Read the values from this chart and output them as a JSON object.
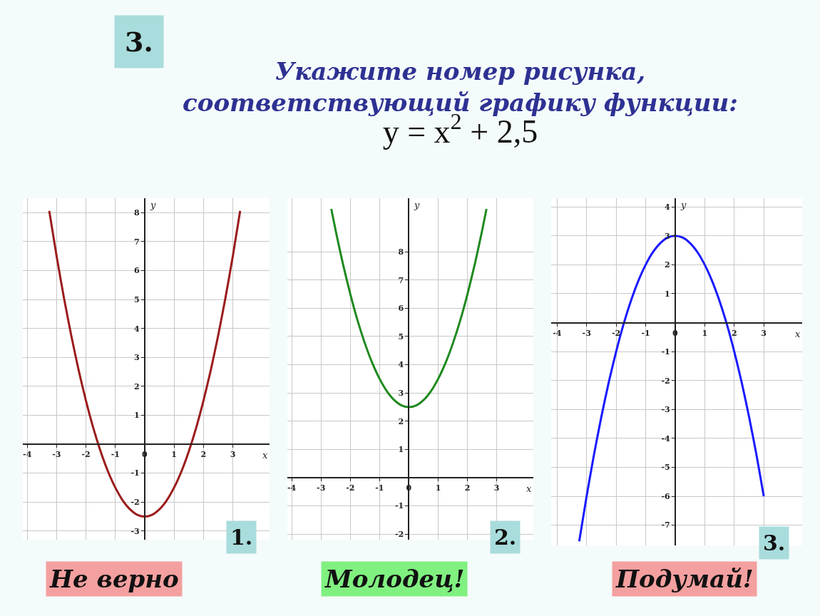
{
  "chart_data": [
    {
      "type": "line",
      "title": "Укажите номер рисунка,\nсоответствующий графику функции:\ny = x$^{2}$ + 2,5",
      "xlabel": "x",
      "ylabel": "y",
      "annotations": [
        "3.",
        "1.",
        "Не верно"
      ],
      "series": [
        {
          "color": "#9b1c1c",
          "x": [
            -3.25,
            -3,
            -2.75,
            -2.5,
            -2.25,
            -2,
            -1.75,
            -1.5,
            -1.25,
            -1,
            -0.75,
            -0.5,
            -0.25,
            0,
            0.25,
            0.5,
            0.75,
            1,
            1.25,
            1.5,
            1.75,
            2,
            2.25,
            2.5,
            2.75,
            3,
            3.25
          ],
          "values": [
            8.06,
            6.5,
            5.06,
            3.75,
            2.56,
            1.5,
            0.56,
            -0.25,
            -0.94,
            -1.5,
            -1.94,
            -2.25,
            -2.44,
            -2.5,
            -2.44,
            -2.25,
            -1.94,
            -1.5,
            -0.94,
            -0.25,
            0.56,
            1.5,
            2.56,
            3.75,
            5.06,
            6.5,
            8.06
          ]
        }
      ],
      "xlim": [
        -4.15,
        4.25
      ],
      "ylim": [
        -3.3,
        8.5
      ],
      "xticks": [
        -4,
        -3,
        -2,
        -1,
        0,
        1,
        2,
        3
      ],
      "yticks": [
        -3,
        -2,
        -1,
        1,
        2,
        3,
        4,
        5,
        6,
        7,
        8
      ],
      "grid": true
    },
    {
      "type": "line",
      "xlabel": "x",
      "ylabel": "y",
      "annotations": [
        "2.",
        "Молодец!"
      ],
      "series": [
        {
          "color": "#1f8a1f",
          "x": [
            -2.65,
            -2.5,
            -2.25,
            -2,
            -1.75,
            -1.5,
            -1.25,
            -1,
            -0.75,
            -0.5,
            -0.25,
            0,
            0.25,
            0.5,
            0.75,
            1,
            1.25,
            1.5,
            1.75,
            2,
            2.25,
            2.5,
            2.65
          ],
          "values": [
            9.52,
            8.75,
            7.56,
            6.5,
            5.56,
            4.75,
            4.06,
            3.5,
            3.06,
            2.75,
            2.56,
            2.5,
            2.56,
            2.75,
            3.06,
            3.5,
            4.06,
            4.75,
            5.56,
            6.5,
            7.56,
            8.75,
            9.52
          ]
        }
      ],
      "xlim": [
        -4.15,
        4.25
      ],
      "ylim": [
        -2.2,
        9.9
      ],
      "xticks": [
        -4,
        -3,
        -2,
        -1,
        0,
        1,
        2,
        3
      ],
      "yticks": [
        -2,
        -1,
        1,
        2,
        3,
        4,
        5,
        6,
        7,
        8
      ],
      "grid": true
    },
    {
      "type": "line",
      "xlabel": "x",
      "ylabel": "y",
      "annotations": [
        "3.",
        "Подумай!"
      ],
      "series": [
        {
          "color": "#1a1aff",
          "x": [
            -3.25,
            -3,
            -2.75,
            -2.5,
            -2.25,
            -2,
            -1.75,
            -1.5,
            -1.25,
            -1,
            -0.75,
            -0.5,
            -0.25,
            0,
            0.25,
            0.5,
            0.75,
            1,
            1.25,
            1.5,
            1.75,
            2,
            2.25,
            2.5,
            2.75,
            3
          ],
          "values": [
            -7.56,
            -6,
            -4.56,
            -3.25,
            -2.06,
            -1,
            -0.06,
            0.75,
            1.44,
            2,
            2.44,
            2.75,
            2.94,
            3,
            2.94,
            2.75,
            2.44,
            2,
            1.44,
            0.75,
            -0.06,
            -1,
            -2.06,
            -3.25,
            -4.56,
            -6
          ]
        }
      ],
      "xlim": [
        -4.2,
        4.3
      ],
      "ylim": [
        -7.7,
        4.3
      ],
      "xticks": [
        -4,
        -3,
        -2,
        -1,
        0,
        1,
        2,
        3
      ],
      "yticks": [
        -7,
        -6,
        -5,
        -4,
        -3,
        -2,
        -1,
        1,
        2,
        3,
        4
      ],
      "grid": true
    }
  ]
}
